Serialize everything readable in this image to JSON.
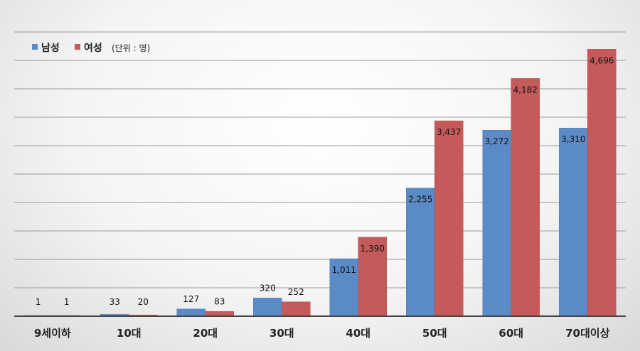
{
  "chart_data": {
    "type": "bar",
    "categories": [
      "9세이하",
      "10대",
      "20대",
      "30대",
      "40대",
      "50대",
      "60대",
      "70대이상"
    ],
    "series": [
      {
        "name": "남성",
        "color": "#5b8bc6",
        "values": [
          1,
          33,
          127,
          320,
          1011,
          2255,
          3272,
          3310
        ],
        "labels": [
          "1",
          "33",
          "127",
          "320",
          "1,011",
          "2,255",
          "3,272",
          "3,310"
        ]
      },
      {
        "name": "여성",
        "color": "#c55a5a",
        "values": [
          1,
          20,
          83,
          252,
          1390,
          3437,
          4182,
          4696
        ],
        "labels": [
          "1",
          "20",
          "83",
          "252",
          "1,390",
          "3,437",
          "4,182",
          "4,696"
        ]
      }
    ],
    "unit_note": "(단위 : 명)",
    "ylim": [
      0,
      5000
    ],
    "grid": true,
    "legend": "top-left"
  }
}
